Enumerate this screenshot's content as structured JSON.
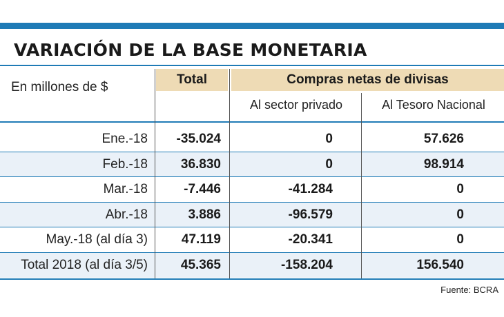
{
  "header": {
    "title": "VARIACIÓN DE LA BASE MONETARIA",
    "units": "En millones de $",
    "col_total": "Total",
    "col_group": "Compras netas de divisas",
    "col_private": "Al sector privado",
    "col_treasury": "Al Tesoro Nacional"
  },
  "footer": {
    "source": "Fuente: BCRA"
  },
  "colors": {
    "accent": "#1f7bb6",
    "header_fill": "#eedbb5",
    "row_shade": "#eaf1f8"
  },
  "chart_data": {
    "type": "table",
    "title": "VARIACIÓN DE LA BASE MONETARIA",
    "subtitle": "En millones de $",
    "columns": [
      "Total",
      "Al sector privado",
      "Al Tesoro Nacional"
    ],
    "column_group": "Compras netas de divisas",
    "rows": [
      {
        "label": "Ene.-18",
        "total": "-35.024",
        "private": "0",
        "treasury": "57.626"
      },
      {
        "label": "Feb.-18",
        "total": "36.830",
        "private": "0",
        "treasury": "98.914"
      },
      {
        "label": "Mar.-18",
        "total": "-7.446",
        "private": "-41.284",
        "treasury": "0"
      },
      {
        "label": "Abr.-18",
        "total": "3.886",
        "private": "-96.579",
        "treasury": "0"
      },
      {
        "label": "May.-18 (al día 3)",
        "total": "47.119",
        "private": "-20.341",
        "treasury": "0"
      },
      {
        "label": "Total 2018 (al día 3/5)",
        "total": "45.365",
        "private": "-158.204",
        "treasury": "156.540"
      }
    ]
  }
}
